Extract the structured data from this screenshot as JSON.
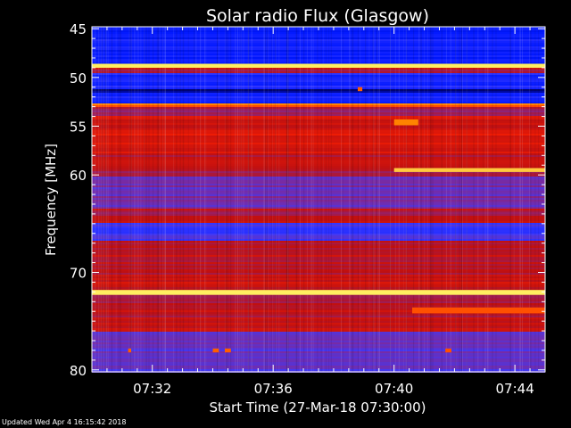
{
  "chart_data": {
    "type": "heatmap",
    "title": "Solar radio Flux (Glasgow)",
    "xlabel": "Start Time (27-Mar-18 07:30:00)",
    "ylabel": "Frequency [MHz]",
    "x_unit": "minutes after 07:30",
    "xlim": [
      0,
      15.0
    ],
    "ylim": [
      80.2,
      44.8
    ],
    "x_ticks": [
      {
        "value": 2,
        "label": "07:32"
      },
      {
        "value": 6,
        "label": "07:36"
      },
      {
        "value": 10,
        "label": "07:40"
      },
      {
        "value": 14,
        "label": "07:44"
      }
    ],
    "y_ticks": [
      {
        "value": 45,
        "label": "45"
      },
      {
        "value": 50,
        "label": "50"
      },
      {
        "value": 55,
        "label": "55"
      },
      {
        "value": 60,
        "label": "60"
      },
      {
        "value": 70,
        "label": "70"
      },
      {
        "value": 80,
        "label": "80"
      }
    ],
    "colormap": [
      "#000060",
      "#0018ff",
      "#3a3aff",
      "#7a2aa0",
      "#c01010",
      "#ff2000",
      "#ff8800",
      "#ffee60"
    ],
    "frequency_bands": [
      {
        "from": 44.8,
        "to": 48.6,
        "level": 0.18
      },
      {
        "from": 48.6,
        "to": 49.0,
        "level": 1.0
      },
      {
        "from": 49.0,
        "to": 49.6,
        "level": 0.55
      },
      {
        "from": 49.6,
        "to": 51.2,
        "level": 0.2
      },
      {
        "from": 51.2,
        "to": 51.6,
        "level": 0.05
      },
      {
        "from": 51.6,
        "to": 52.6,
        "level": 0.2
      },
      {
        "from": 52.6,
        "to": 53.0,
        "level": 0.8
      },
      {
        "from": 53.0,
        "to": 54.0,
        "level": 0.5
      },
      {
        "from": 54.0,
        "to": 58.0,
        "level": 0.62
      },
      {
        "from": 58.0,
        "to": 60.2,
        "level": 0.55
      },
      {
        "from": 60.2,
        "to": 63.5,
        "level": 0.4
      },
      {
        "from": 63.5,
        "to": 65.0,
        "level": 0.55
      },
      {
        "from": 65.0,
        "to": 66.8,
        "level": 0.3
      },
      {
        "from": 66.8,
        "to": 71.8,
        "level": 0.58
      },
      {
        "from": 71.8,
        "to": 72.3,
        "level": 1.0
      },
      {
        "from": 72.3,
        "to": 76.0,
        "level": 0.56
      },
      {
        "from": 76.0,
        "to": 80.2,
        "level": 0.36
      }
    ],
    "features": [
      {
        "x0": 0,
        "x1": 15.0,
        "f0": 48.6,
        "f1": 49.0,
        "level": 1.0
      },
      {
        "x0": 0,
        "x1": 15.0,
        "f0": 71.8,
        "f1": 72.3,
        "level": 1.0
      },
      {
        "x0": 10.0,
        "x1": 15.0,
        "f0": 59.3,
        "f1": 59.7,
        "level": 0.95
      },
      {
        "x0": 10.0,
        "x1": 10.8,
        "f0": 54.3,
        "f1": 54.9,
        "level": 0.85
      },
      {
        "x0": 10.6,
        "x1": 15.0,
        "f0": 73.6,
        "f1": 74.2,
        "level": 0.78
      },
      {
        "x0": 8.8,
        "x1": 8.95,
        "f0": 51.0,
        "f1": 51.4,
        "level": 0.8
      },
      {
        "x0": 1.2,
        "x1": 1.3,
        "f0": 77.8,
        "f1": 78.2,
        "level": 0.8
      },
      {
        "x0": 4.0,
        "x1": 4.2,
        "f0": 77.8,
        "f1": 78.2,
        "level": 0.8
      },
      {
        "x0": 4.4,
        "x1": 4.6,
        "f0": 77.8,
        "f1": 78.2,
        "level": 0.8
      },
      {
        "x0": 11.7,
        "x1": 11.9,
        "f0": 77.8,
        "f1": 78.2,
        "level": 0.78
      }
    ]
  },
  "footer": {
    "updated": "Updated Wed Apr  4 16:15:42 2018"
  }
}
